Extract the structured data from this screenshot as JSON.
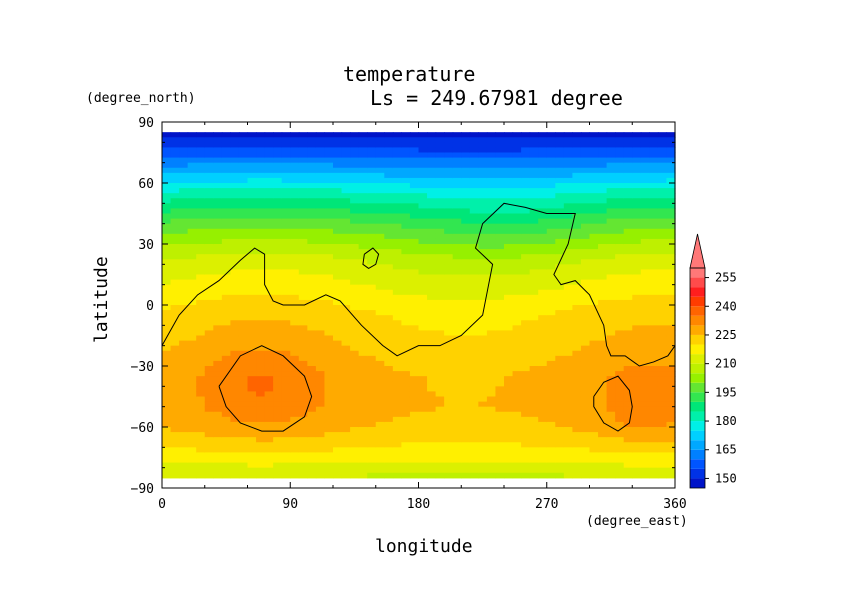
{
  "chart_data": {
    "type": "heatmap",
    "title": "temperature",
    "subtitle": "Ls = 249.67981 degree",
    "xlabel": "longitude",
    "ylabel": "latitude",
    "x_unit": "(degree_east)",
    "y_unit": "(degree_north)",
    "xlim": [
      0,
      360
    ],
    "ylim": [
      -90,
      90
    ],
    "x_ticks": [
      "0",
      "90",
      "180",
      "270",
      "360"
    ],
    "y_ticks": [
      "90",
      "60",
      "30",
      "0",
      "−30",
      "−60",
      "−90"
    ],
    "x_tick_values": [
      0,
      90,
      180,
      270,
      360
    ],
    "y_tick_values": [
      90,
      60,
      30,
      0,
      -30,
      -60,
      -90
    ],
    "colorbar": {
      "ticks": [
        "255",
        "240",
        "225",
        "210",
        "195",
        "180",
        "165",
        "150"
      ],
      "tick_values": [
        255,
        240,
        225,
        210,
        195,
        180,
        165,
        150
      ],
      "levels": [
        145,
        150,
        155,
        160,
        165,
        170,
        175,
        180,
        185,
        190,
        195,
        200,
        205,
        210,
        215,
        220,
        225,
        230,
        235,
        240,
        245,
        250,
        255,
        260
      ],
      "colors": [
        "#0014c8",
        "#0032e6",
        "#0055ff",
        "#0080ff",
        "#00a8ff",
        "#00d0ff",
        "#00f0e6",
        "#00f0aa",
        "#00e678",
        "#32e650",
        "#64e632",
        "#96f000",
        "#bef000",
        "#dcf000",
        "#fff000",
        "#ffd200",
        "#ffaa00",
        "#ff8700",
        "#ff6400",
        "#ff3c00",
        "#ff1e1e",
        "#ff4b4b",
        "#ff7878"
      ],
      "extend_color": "#ff7878"
    },
    "field": {
      "latitudes": [
        85,
        80,
        75,
        70,
        65,
        60,
        55,
        50,
        45,
        40,
        35,
        30,
        25,
        20,
        15,
        10,
        5,
        0,
        -5,
        -10,
        -15,
        -20,
        -25,
        -30,
        -35,
        -40,
        -45,
        -50,
        -55,
        -60,
        -65,
        -70,
        -75,
        -80,
        -85
      ],
      "zonal_mean": [
        148,
        152,
        157,
        163,
        169,
        175,
        181,
        186,
        191,
        196,
        200,
        204,
        208,
        211,
        213,
        215,
        217,
        219,
        221,
        222,
        223,
        224,
        225,
        226,
        227,
        227,
        227,
        227,
        226,
        225,
        223,
        220,
        217,
        213,
        209
      ]
    },
    "contours": [
      {
        "name": "contour-main",
        "lon": [
          0,
          12,
          25,
          40,
          55,
          65,
          72,
          72,
          78,
          85,
          100,
          115,
          125,
          140,
          155,
          165,
          180,
          195,
          210,
          225,
          232,
          220,
          225,
          240,
          255,
          270,
          280,
          290,
          285,
          275,
          280,
          290,
          300,
          310,
          312,
          315,
          325,
          335,
          345,
          355,
          360
        ],
        "lat": [
          -20,
          -5,
          5,
          12,
          22,
          28,
          25,
          10,
          2,
          0,
          0,
          5,
          2,
          -10,
          -20,
          -25,
          -20,
          -20,
          -15,
          -5,
          20,
          28,
          40,
          50,
          48,
          45,
          45,
          45,
          30,
          15,
          10,
          12,
          5,
          -10,
          -20,
          -25,
          -25,
          -30,
          -28,
          -25,
          -20
        ]
      },
      {
        "name": "contour-south-west",
        "lon": [
          40,
          55,
          70,
          85,
          100,
          105,
          100,
          85,
          70,
          55,
          45,
          40
        ],
        "lat": [
          -40,
          -25,
          -20,
          -25,
          -35,
          -45,
          -55,
          -62,
          -62,
          -58,
          -50,
          -40
        ]
      },
      {
        "name": "contour-south-east",
        "lon": [
          303,
          310,
          320,
          328,
          330,
          328,
          320,
          310,
          303,
          303
        ],
        "lat": [
          -45,
          -38,
          -35,
          -42,
          -50,
          -58,
          -62,
          -58,
          -50,
          -45
        ]
      },
      {
        "name": "contour-small",
        "lon": [
          142,
          148,
          152,
          150,
          145,
          141,
          142
        ],
        "lat": [
          25,
          28,
          25,
          20,
          18,
          20,
          25
        ]
      }
    ]
  }
}
